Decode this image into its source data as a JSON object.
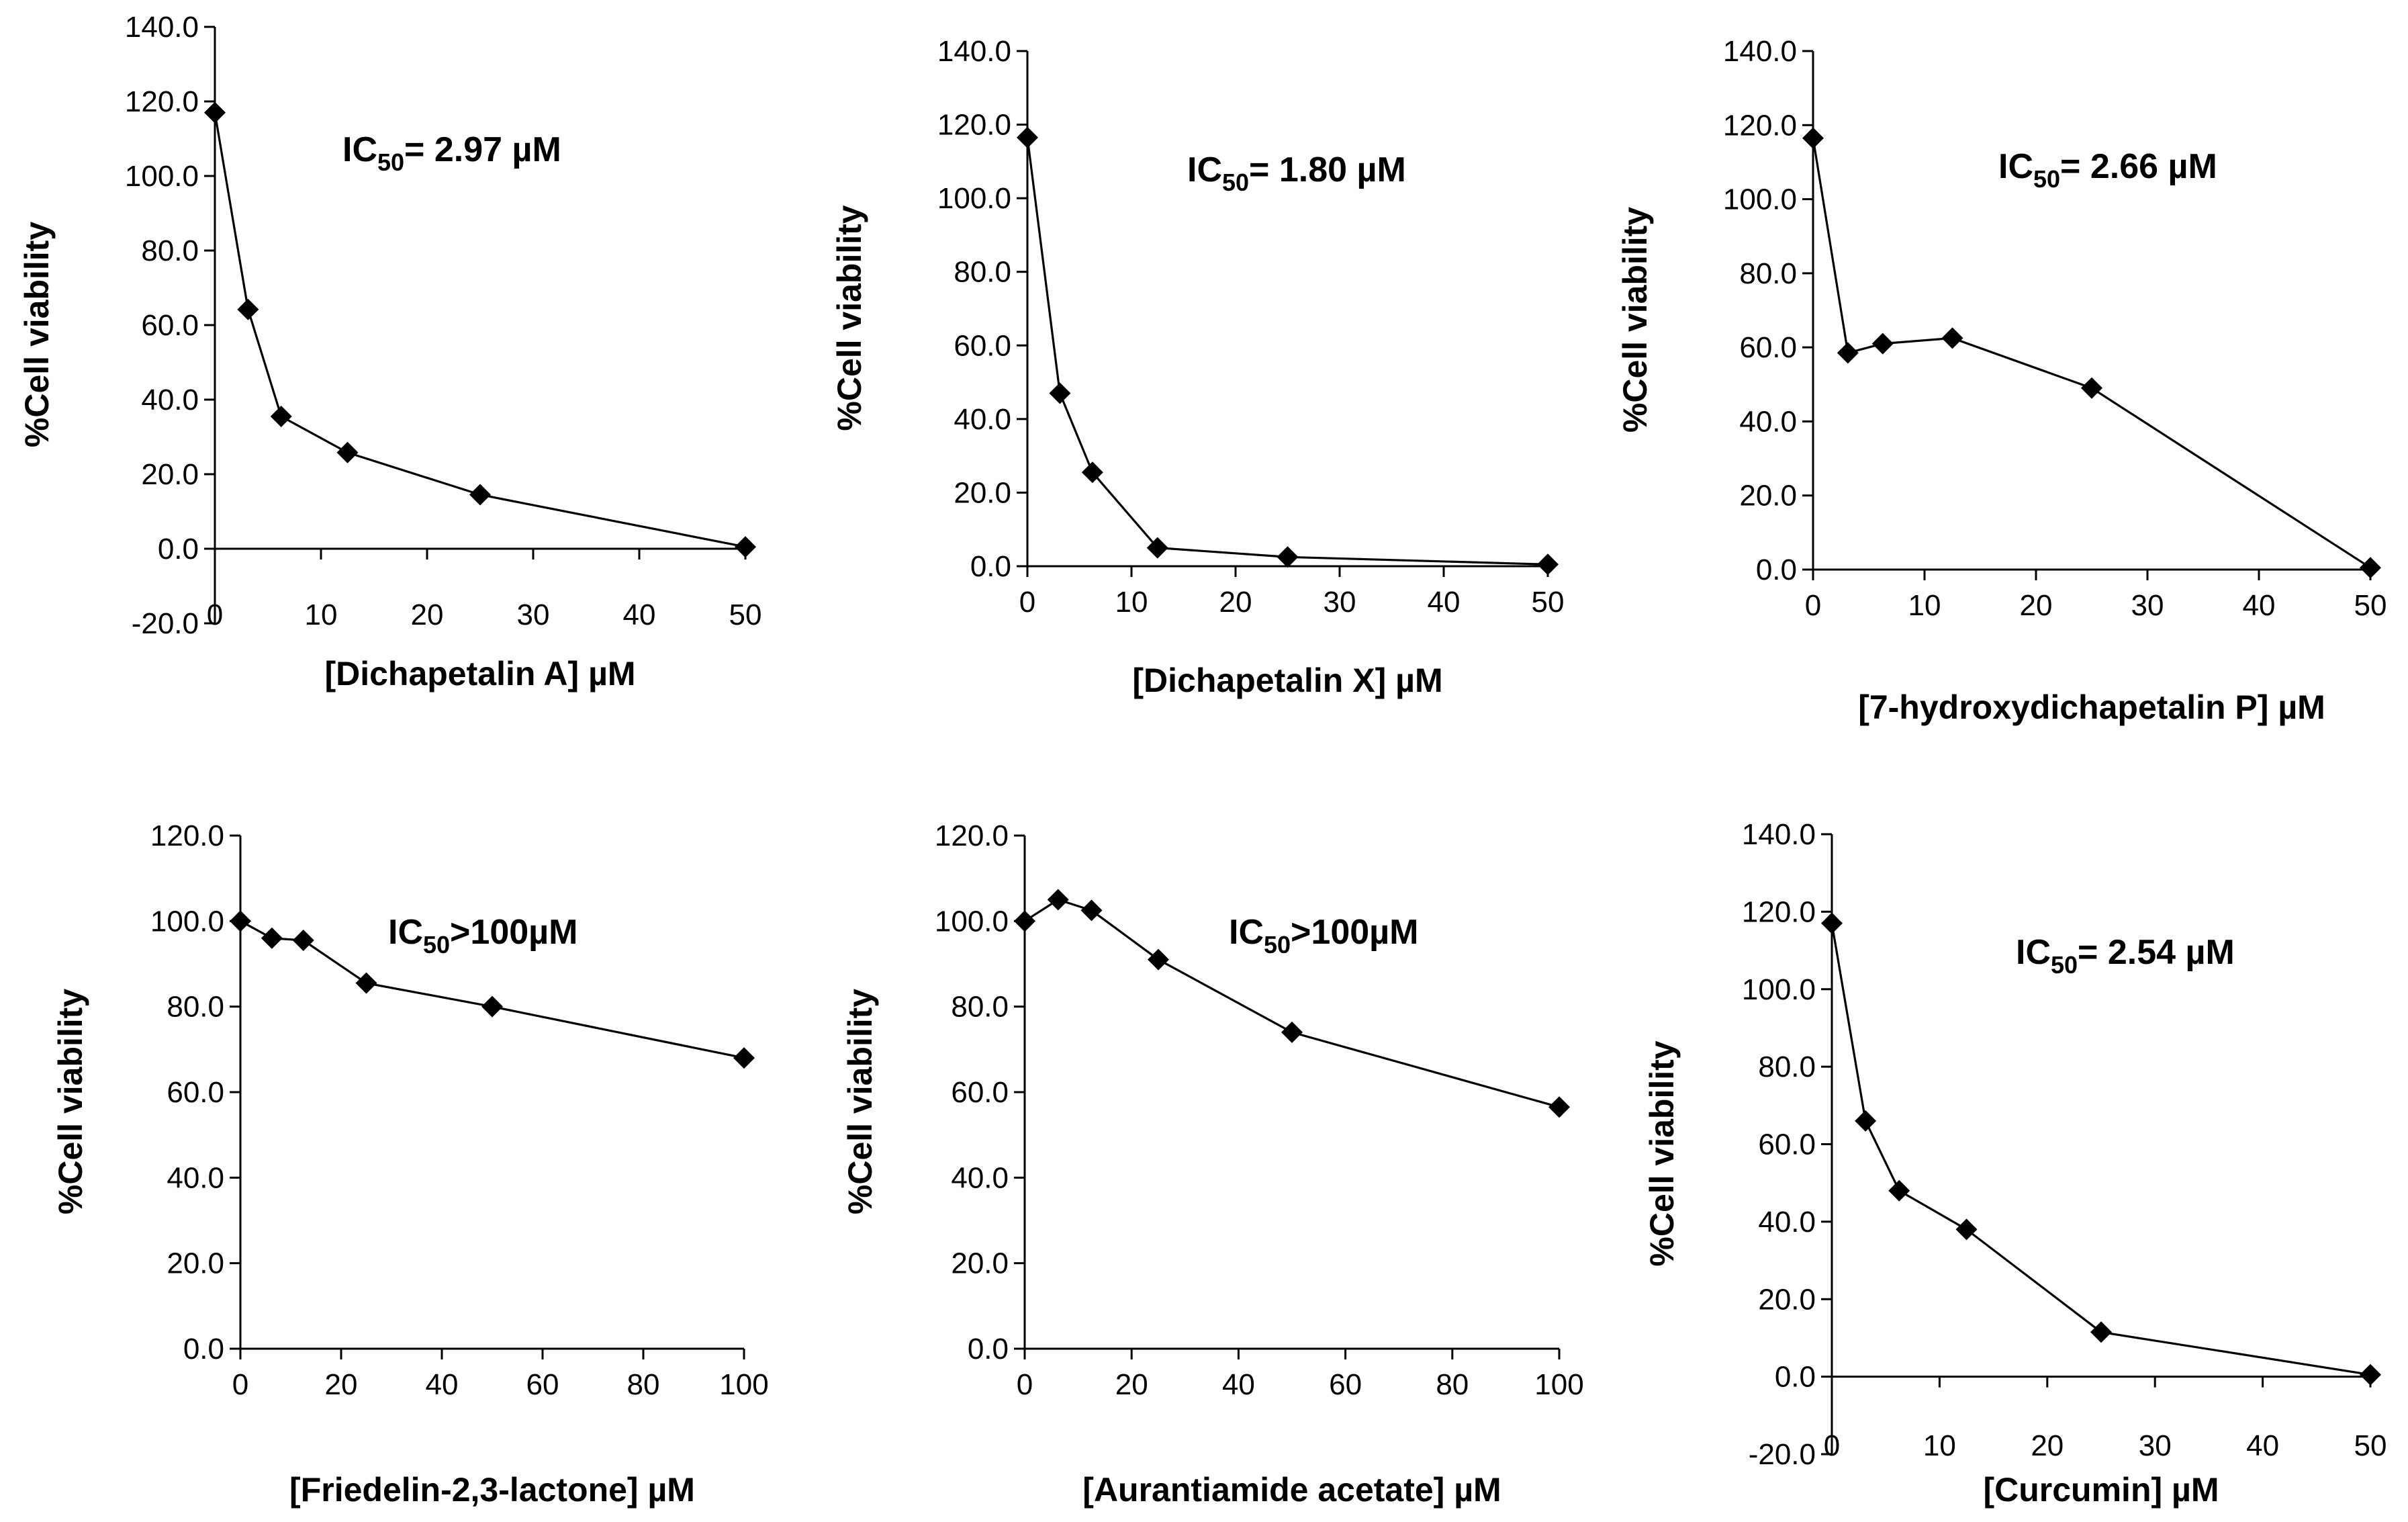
{
  "figure": {
    "colors": {
      "line": "#000000",
      "marker": "#000000",
      "background": "#ffffff"
    }
  },
  "chart_data": [
    {
      "type": "line",
      "marker": "diamond",
      "x": [
        0,
        3.125,
        6.25,
        12.5,
        25,
        50
      ],
      "series": [
        {
          "name": "Dichapetalin A",
          "values": [
            117.0,
            64.2,
            35.5,
            25.8,
            14.5,
            0.5
          ]
        }
      ],
      "xlim": [
        0,
        50
      ],
      "xticks": [
        0,
        10,
        20,
        30,
        40,
        50
      ],
      "xtick_labels": [
        "0",
        "10",
        "20",
        "30",
        "40",
        "50"
      ],
      "ylim": [
        -20,
        140
      ],
      "yticks": [
        -20,
        0,
        20,
        40,
        60,
        80,
        100,
        120,
        140
      ],
      "ytick_labels": [
        "-20.0",
        "0.0",
        "20.0",
        "40.0",
        "60.0",
        "80.0",
        "100.0",
        "120.0",
        "140.0"
      ],
      "xlabel": "[Dichapetalin A] µM",
      "ylabel": "%Cell viability",
      "annotation": {
        "prefix": "IC",
        "sub": "50",
        "suffix": "= 2.97 µM"
      }
    },
    {
      "type": "line",
      "marker": "diamond",
      "x": [
        0,
        3.125,
        6.25,
        12.5,
        25,
        50
      ],
      "series": [
        {
          "name": "Dichapetalin X",
          "values": [
            116.5,
            47.0,
            25.5,
            5.0,
            2.5,
            0.5
          ]
        }
      ],
      "xlim": [
        0,
        50
      ],
      "xticks": [
        0,
        10,
        20,
        30,
        40,
        50
      ],
      "xtick_labels": [
        "0",
        "10",
        "20",
        "30",
        "40",
        "50"
      ],
      "ylim": [
        0,
        140
      ],
      "yticks": [
        0,
        20,
        40,
        60,
        80,
        100,
        120,
        140
      ],
      "ytick_labels": [
        "0.0",
        "20.0",
        "40.0",
        "60.0",
        "80.0",
        "100.0",
        "120.0",
        "140.0"
      ],
      "xlabel": "[Dichapetalin X] µM",
      "ylabel": "%Cell viability",
      "annotation": {
        "prefix": "IC",
        "sub": "50",
        "suffix": "= 1.80 µM"
      }
    },
    {
      "type": "line",
      "marker": "diamond",
      "x": [
        0,
        3.125,
        6.25,
        12.5,
        25,
        50
      ],
      "series": [
        {
          "name": "7-hydroxydichapetalin P",
          "values": [
            116.5,
            58.5,
            61.0,
            62.5,
            49.0,
            0.5
          ]
        }
      ],
      "xlim": [
        0,
        50
      ],
      "xticks": [
        0,
        10,
        20,
        30,
        40,
        50
      ],
      "xtick_labels": [
        "0",
        "10",
        "20",
        "30",
        "40",
        "50"
      ],
      "ylim": [
        0,
        140
      ],
      "yticks": [
        0,
        20,
        40,
        60,
        80,
        100,
        120,
        140
      ],
      "ytick_labels": [
        "0.0",
        "20.0",
        "40.0",
        "60.0",
        "80.0",
        "100.0",
        "120.0",
        "140.0"
      ],
      "xlabel": "[7-hydroxydichapetalin P] µM",
      "ylabel": "%Cell viability",
      "annotation": {
        "prefix": "IC",
        "sub": "50",
        "suffix": "= 2.66 µM"
      }
    },
    {
      "type": "line",
      "marker": "diamond",
      "x": [
        0,
        6.25,
        12.5,
        25,
        50,
        100
      ],
      "series": [
        {
          "name": "Friedelin-2,3-lactone",
          "values": [
            100.0,
            96.0,
            95.5,
            85.5,
            80.0,
            68.0
          ]
        }
      ],
      "xlim": [
        0,
        100
      ],
      "xticks": [
        0,
        20,
        40,
        60,
        80,
        100
      ],
      "xtick_labels": [
        "0",
        "20",
        "40",
        "60",
        "80",
        "100"
      ],
      "ylim": [
        0,
        120
      ],
      "yticks": [
        0,
        20,
        40,
        60,
        80,
        100,
        120
      ],
      "ytick_labels": [
        "0.0",
        "20.0",
        "40.0",
        "60.0",
        "80.0",
        "100.0",
        "120.0"
      ],
      "xlabel": "[Friedelin-2,3-lactone] µM",
      "ylabel": "%Cell viability",
      "annotation": {
        "prefix": "IC",
        "sub": "50",
        "suffix": ">100µM"
      }
    },
    {
      "type": "line",
      "marker": "diamond",
      "x": [
        0,
        6.25,
        12.5,
        25,
        50,
        100
      ],
      "series": [
        {
          "name": "Aurantiamide acetate",
          "values": [
            100.0,
            105.0,
            102.5,
            91.0,
            74.0,
            56.5
          ]
        }
      ],
      "xlim": [
        0,
        100
      ],
      "xticks": [
        0,
        20,
        40,
        60,
        80,
        100
      ],
      "xtick_labels": [
        "0",
        "20",
        "40",
        "60",
        "80",
        "100"
      ],
      "ylim": [
        0,
        120
      ],
      "yticks": [
        0,
        20,
        40,
        60,
        80,
        100,
        120
      ],
      "ytick_labels": [
        "0.0",
        "20.0",
        "40.0",
        "60.0",
        "80.0",
        "100.0",
        "120.0"
      ],
      "xlabel": "[Aurantiamide acetate] µM",
      "ylabel": "%Cell viability",
      "annotation": {
        "prefix": "IC",
        "sub": "50",
        "suffix": ">100µM"
      }
    },
    {
      "type": "line",
      "marker": "diamond",
      "x": [
        0,
        3.125,
        6.25,
        12.5,
        25,
        50
      ],
      "series": [
        {
          "name": "Curcumin",
          "values": [
            117.0,
            66.0,
            48.0,
            38.0,
            11.5,
            0.5
          ]
        }
      ],
      "xlim": [
        0,
        50
      ],
      "xticks": [
        0,
        10,
        20,
        30,
        40,
        50
      ],
      "xtick_labels": [
        "0",
        "10",
        "20",
        "30",
        "40",
        "50"
      ],
      "ylim": [
        -20,
        140
      ],
      "yticks": [
        -20,
        0,
        20,
        40,
        60,
        80,
        100,
        120,
        140
      ],
      "ytick_labels": [
        "-20.0",
        "0.0",
        "20.0",
        "40.0",
        "60.0",
        "80.0",
        "100.0",
        "120.0",
        "140.0"
      ],
      "xlabel": "[Curcumin] µM",
      "ylabel": "%Cell viability",
      "annotation": {
        "prefix": "IC",
        "sub": "50",
        "suffix": "= 2.54 µM"
      }
    }
  ]
}
